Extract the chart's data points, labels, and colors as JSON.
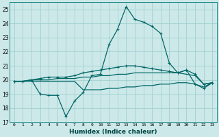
{
  "xlabel": "Humidex (Indice chaleur)",
  "xlim": [
    -0.5,
    23.5
  ],
  "ylim": [
    17,
    25.5
  ],
  "yticks": [
    17,
    18,
    19,
    20,
    21,
    22,
    23,
    24,
    25
  ],
  "xticks": [
    0,
    1,
    2,
    3,
    4,
    5,
    6,
    7,
    8,
    9,
    10,
    11,
    12,
    13,
    14,
    15,
    16,
    17,
    18,
    19,
    20,
    21,
    22,
    23
  ],
  "bg_color": "#cce8e8",
  "grid_color": "#99cccc",
  "line_color": "#006666",
  "line1_x": [
    0,
    1,
    2,
    3,
    4,
    5,
    6,
    7,
    8,
    9,
    10,
    11,
    12,
    13,
    14,
    15,
    16,
    17,
    18,
    19,
    20,
    21,
    22,
    23
  ],
  "line1_y": [
    19.9,
    19.9,
    20.0,
    19.0,
    18.9,
    18.9,
    17.4,
    18.5,
    19.1,
    20.3,
    20.4,
    22.5,
    23.6,
    25.2,
    24.3,
    24.1,
    23.8,
    23.3,
    21.2,
    20.5,
    20.7,
    19.7,
    19.4,
    19.8
  ],
  "line2_x": [
    0,
    1,
    2,
    3,
    4,
    5,
    6,
    7,
    8,
    9,
    10,
    11,
    12,
    13,
    14,
    15,
    16,
    17,
    18,
    19,
    20,
    21,
    22,
    23
  ],
  "line2_y": [
    19.9,
    19.9,
    20.0,
    20.1,
    20.2,
    20.2,
    20.2,
    20.3,
    20.5,
    20.6,
    20.7,
    20.8,
    20.9,
    21.0,
    21.0,
    20.9,
    20.8,
    20.7,
    20.6,
    20.5,
    20.7,
    20.4,
    19.7,
    19.8
  ],
  "line3_x": [
    0,
    1,
    2,
    3,
    4,
    5,
    6,
    7,
    8,
    9,
    10,
    11,
    12,
    13,
    14,
    15,
    16,
    17,
    18,
    19,
    20,
    21,
    22,
    23
  ],
  "line3_y": [
    19.9,
    19.9,
    20.0,
    20.0,
    20.0,
    20.1,
    20.1,
    20.1,
    20.2,
    20.2,
    20.3,
    20.3,
    20.4,
    20.4,
    20.5,
    20.5,
    20.5,
    20.5,
    20.5,
    20.5,
    20.4,
    20.3,
    19.7,
    19.8
  ],
  "line4_x": [
    0,
    1,
    2,
    3,
    4,
    5,
    6,
    7,
    8,
    9,
    10,
    11,
    12,
    13,
    14,
    15,
    16,
    17,
    18,
    19,
    20,
    21,
    22,
    23
  ],
  "line4_y": [
    19.9,
    19.9,
    19.9,
    19.9,
    19.9,
    19.9,
    19.9,
    19.9,
    19.3,
    19.3,
    19.3,
    19.4,
    19.4,
    19.5,
    19.5,
    19.6,
    19.6,
    19.7,
    19.7,
    19.8,
    19.8,
    19.7,
    19.5,
    19.8
  ]
}
